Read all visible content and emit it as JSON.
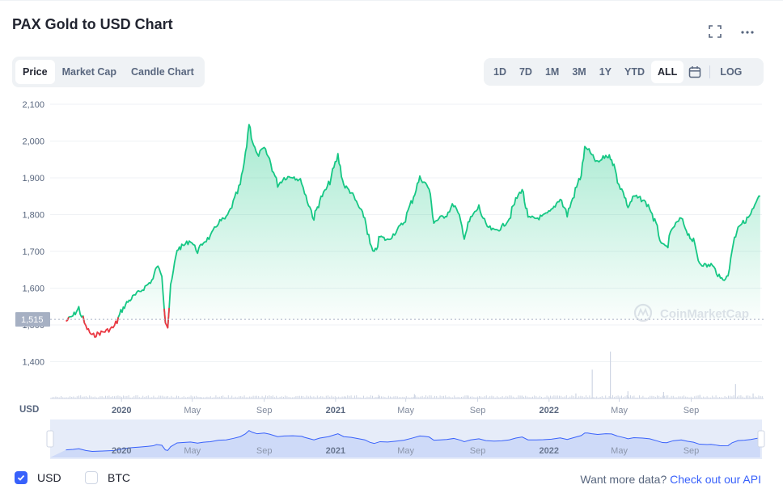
{
  "header": {
    "title": "PAX Gold to USD Chart"
  },
  "icons": {
    "fullscreen": "fullscreen-icon",
    "more": "more-icon",
    "calendar": "calendar-icon",
    "watermark": "coinmarketcap-logo-icon"
  },
  "tabs": [
    "Price",
    "Market Cap",
    "Candle Chart"
  ],
  "active_tab": "Price",
  "ranges": [
    "1D",
    "7D",
    "1M",
    "3M",
    "1Y",
    "YTD",
    "ALL"
  ],
  "active_range": "ALL",
  "log_label": "LOG",
  "watermark": "CoinMarketCap",
  "currency_label": "USD",
  "current_price_label": "1,515",
  "legend": {
    "usd": "USD",
    "btc": "BTC",
    "usd_checked": true,
    "btc_checked": false
  },
  "footer": {
    "more_text": "Want more data?",
    "more_link": "Check out our API"
  },
  "colors": {
    "up": "#16c784",
    "down": "#ea3943",
    "accent": "#3861fb",
    "grid": "#eff2f5",
    "text_muted": "#58667e"
  },
  "chart_data": {
    "type": "area",
    "ylim": [
      1300,
      2100
    ],
    "y_ticks": [
      1400,
      1500,
      1600,
      1700,
      1800,
      1900,
      2000,
      2100
    ],
    "y_tick_labels": [
      "1,400",
      "1,500",
      "1,600",
      "1,700",
      "1,800",
      "1,900",
      "2,000",
      "2,100"
    ],
    "x_ticks": [
      "2020",
      "May",
      "Sep",
      "2021",
      "May",
      "Sep",
      "2022",
      "May",
      "Sep"
    ],
    "x_ticks_bold": [
      true,
      false,
      false,
      true,
      false,
      false,
      true,
      false,
      false
    ],
    "x_range": [
      "2019-09",
      "2022-12"
    ],
    "baseline_value": 1515,
    "series": [
      {
        "x": [
          "2019-09-28",
          "2019-10-10",
          "2019-10-20",
          "2019-11-01",
          "2019-11-12",
          "2019-11-25",
          "2019-12-08",
          "2019-12-20",
          "2020-01-02",
          "2020-01-10",
          "2020-01-20",
          "2020-02-01",
          "2020-02-15",
          "2020-02-24",
          "2020-03-01",
          "2020-03-10",
          "2020-03-16",
          "2020-03-20",
          "2020-03-25",
          "2020-04-05",
          "2020-04-15",
          "2020-04-28",
          "2020-05-10",
          "2020-05-20",
          "2020-06-01",
          "2020-06-15",
          "2020-06-28",
          "2020-07-10",
          "2020-07-22",
          "2020-07-31",
          "2020-08-06",
          "2020-08-12",
          "2020-08-20",
          "2020-09-01",
          "2020-09-10",
          "2020-09-24",
          "2020-10-05",
          "2020-10-20",
          "2020-11-04",
          "2020-11-09",
          "2020-11-25",
          "2020-12-05",
          "2020-12-20",
          "2021-01-05",
          "2021-01-15",
          "2021-01-28",
          "2021-02-10",
          "2021-02-20",
          "2021-03-01",
          "2021-03-08",
          "2021-03-18",
          "2021-03-31",
          "2021-04-12",
          "2021-04-28",
          "2021-05-10",
          "2021-05-25",
          "2021-06-01",
          "2021-06-10",
          "2021-06-18",
          "2021-06-29",
          "2021-07-10",
          "2021-07-22",
          "2021-08-03",
          "2021-08-09",
          "2021-08-20",
          "2021-09-03",
          "2021-09-15",
          "2021-09-29",
          "2021-10-12",
          "2021-10-25",
          "2021-11-05",
          "2021-11-16",
          "2021-11-26",
          "2021-12-10",
          "2021-12-22",
          "2022-01-05",
          "2022-01-20",
          "2022-02-01",
          "2022-02-15",
          "2022-02-25",
          "2022-03-03",
          "2022-03-08",
          "2022-03-15",
          "2022-03-25",
          "2022-04-08",
          "2022-04-18",
          "2022-04-28",
          "2022-05-10",
          "2022-05-16",
          "2022-05-26",
          "2022-06-10",
          "2022-06-22",
          "2022-07-05",
          "2022-07-14",
          "2022-07-21",
          "2022-08-01",
          "2022-08-15",
          "2022-08-26",
          "2022-09-05",
          "2022-09-15",
          "2022-09-28",
          "2022-10-05",
          "2022-10-12",
          "2022-10-21",
          "2022-11-03",
          "2022-11-10",
          "2022-11-20",
          "2022-12-01",
          "2022-12-12",
          "2022-12-28"
        ],
        "y": [
          1510,
          1525,
          1545,
          1495,
          1470,
          1478,
          1485,
          1495,
          1540,
          1560,
          1575,
          1590,
          1610,
          1625,
          1660,
          1640,
          1510,
          1495,
          1600,
          1705,
          1715,
          1730,
          1700,
          1725,
          1740,
          1780,
          1790,
          1830,
          1880,
          1960,
          2050,
          2000,
          1960,
          1980,
          1950,
          1880,
          1900,
          1905,
          1890,
          1860,
          1790,
          1840,
          1880,
          1960,
          1880,
          1860,
          1820,
          1790,
          1720,
          1690,
          1740,
          1730,
          1750,
          1780,
          1830,
          1900,
          1890,
          1870,
          1780,
          1790,
          1800,
          1830,
          1780,
          1740,
          1790,
          1820,
          1770,
          1755,
          1765,
          1790,
          1840,
          1870,
          1790,
          1790,
          1795,
          1810,
          1845,
          1800,
          1865,
          1910,
          1980,
          1980,
          1960,
          1940,
          1960,
          1955,
          1895,
          1850,
          1820,
          1850,
          1840,
          1820,
          1760,
          1715,
          1710,
          1765,
          1790,
          1750,
          1725,
          1670,
          1660,
          1665,
          1650,
          1625,
          1630,
          1710,
          1770,
          1780,
          1800,
          1850
        ]
      }
    ],
    "volume": {
      "x": [
        "2020-01",
        "2020-05",
        "2020-09",
        "2021-01",
        "2021-03",
        "2021-05",
        "2021-08",
        "2021-11",
        "2022-02",
        "2022-03",
        "2022-04",
        "2022-05",
        "2022-07",
        "2022-09",
        "2022-11",
        "2022-12"
      ],
      "y": [
        2,
        3,
        4,
        6,
        10,
        12,
        8,
        8,
        14,
        80,
        130,
        20,
        18,
        10,
        40,
        14
      ]
    },
    "navigator_labels": [
      "2020",
      "May",
      "Sep",
      "2021",
      "May",
      "Sep",
      "2022",
      "May",
      "Sep"
    ]
  }
}
